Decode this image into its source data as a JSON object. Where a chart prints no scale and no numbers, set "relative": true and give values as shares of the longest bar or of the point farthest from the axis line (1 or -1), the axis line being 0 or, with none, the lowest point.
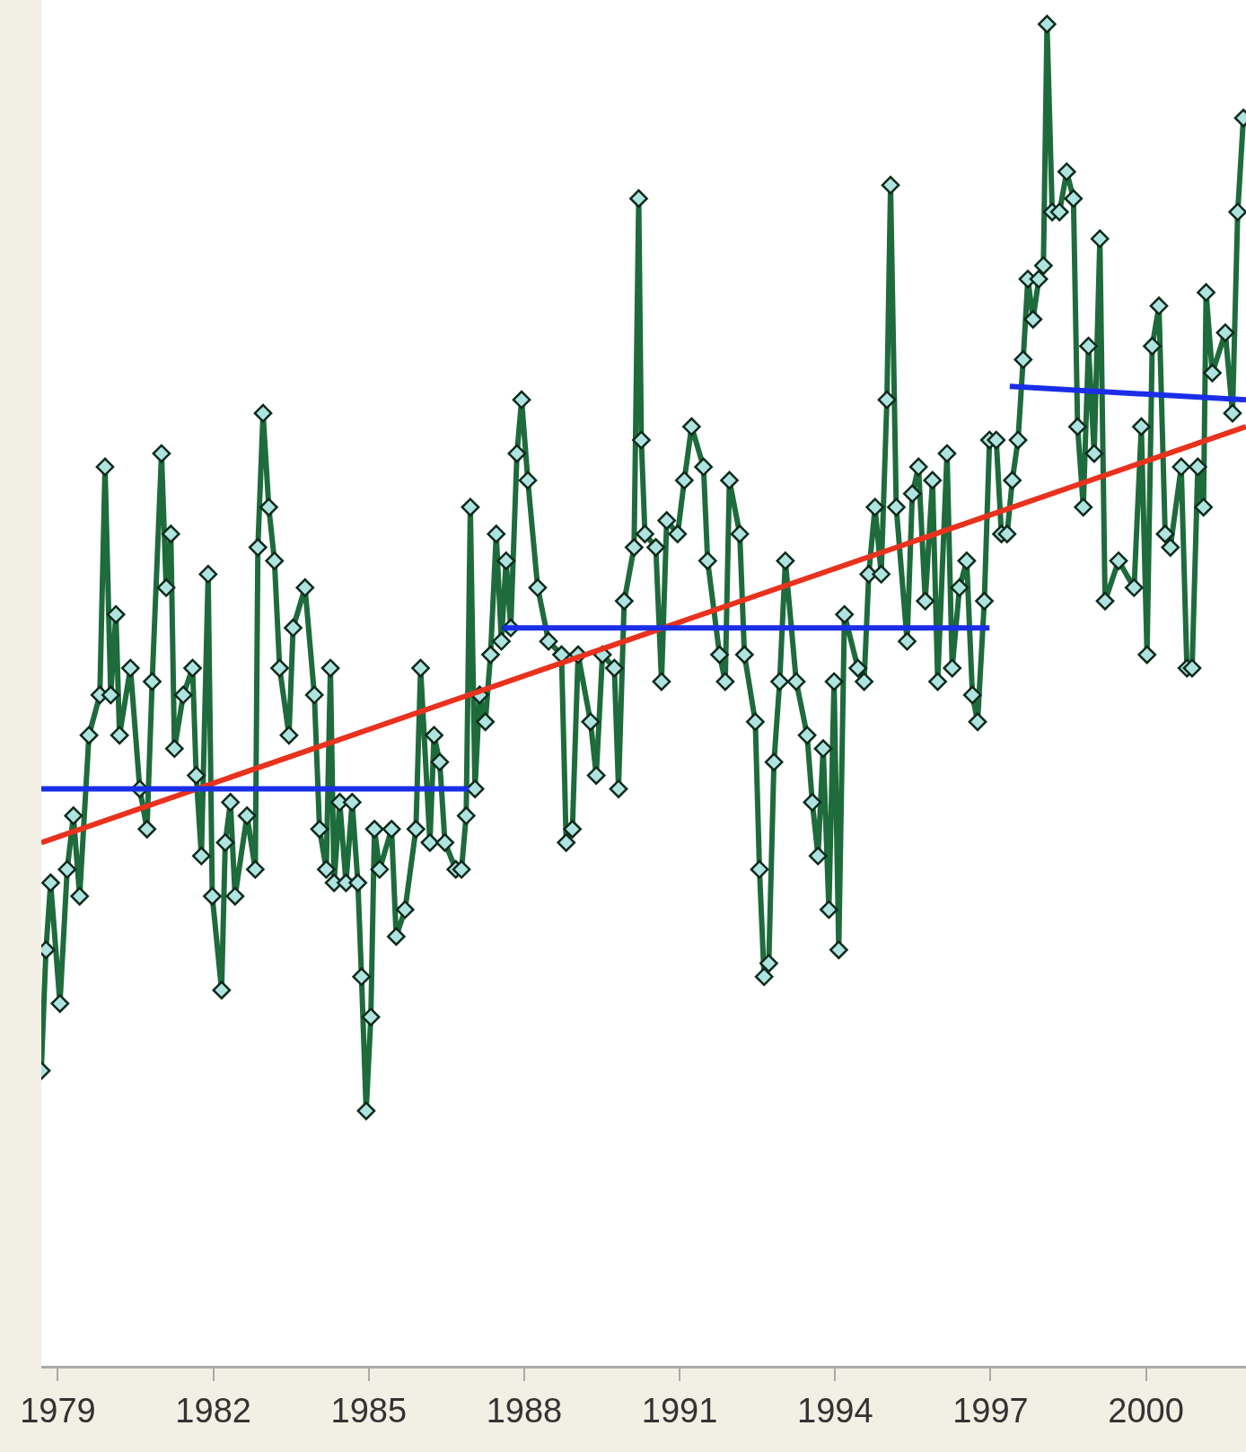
{
  "chart_data": {
    "type": "line",
    "relative": true,
    "tick_labels": "x",
    "xlim": [
      1978.68,
      2001.93
    ],
    "xticks": [
      1979,
      1982,
      1985,
      1988,
      1991,
      1994,
      1997,
      2000
    ],
    "series": [
      {
        "color": "#1e6b3c",
        "marker": "diamond",
        "line_style": "solid",
        "x": [
          1978.68,
          1978.77,
          1978.86,
          1979.04,
          1979.18,
          1979.3,
          1979.42,
          1979.6,
          1979.81,
          1979.91,
          1980.02,
          1980.12,
          1980.19,
          1980.4,
          1980.58,
          1980.72,
          1980.82,
          1981.0,
          1981.09,
          1981.18,
          1981.25,
          1981.42,
          1981.6,
          1981.67,
          1981.77,
          1981.9,
          1981.98,
          1982.16,
          1982.23,
          1982.33,
          1982.42,
          1982.65,
          1982.81,
          1982.86,
          1982.96,
          1983.07,
          1983.18,
          1983.28,
          1983.46,
          1983.54,
          1983.77,
          1983.95,
          1984.05,
          1984.18,
          1984.26,
          1984.33,
          1984.44,
          1984.56,
          1984.68,
          1984.79,
          1984.86,
          1984.95,
          1985.04,
          1985.11,
          1985.21,
          1985.44,
          1985.53,
          1985.7,
          1985.91,
          1986.0,
          1986.18,
          1986.26,
          1986.37,
          1986.47,
          1986.68,
          1986.79,
          1986.88,
          1986.96,
          1987.05,
          1987.14,
          1987.25,
          1987.35,
          1987.46,
          1987.56,
          1987.65,
          1987.74,
          1987.86,
          1987.95,
          1988.07,
          1988.26,
          1988.47,
          1988.72,
          1988.81,
          1988.93,
          1989.04,
          1989.28,
          1989.39,
          1989.51,
          1989.74,
          1989.82,
          1989.93,
          1990.12,
          1990.21,
          1990.26,
          1990.33,
          1990.54,
          1990.65,
          1990.75,
          1990.96,
          1991.09,
          1991.23,
          1991.46,
          1991.54,
          1991.77,
          1991.88,
          1991.96,
          1992.16,
          1992.25,
          1992.46,
          1992.54,
          1992.63,
          1992.72,
          1992.82,
          1992.93,
          1993.04,
          1993.25,
          1993.46,
          1993.56,
          1993.67,
          1993.77,
          1993.88,
          1993.98,
          1994.07,
          1994.18,
          1994.44,
          1994.56,
          1994.65,
          1994.77,
          1994.89,
          1995.0,
          1995.07,
          1995.18,
          1995.39,
          1995.49,
          1995.61,
          1995.74,
          1995.88,
          1995.98,
          1996.16,
          1996.26,
          1996.4,
          1996.54,
          1996.65,
          1996.75,
          1996.88,
          1996.98,
          1997.11,
          1997.21,
          1997.32,
          1997.42,
          1997.53,
          1997.63,
          1997.72,
          1997.82,
          1997.93,
          1998.02,
          1998.09,
          1998.19,
          1998.33,
          1998.47,
          1998.6,
          1998.68,
          1998.79,
          1998.89,
          1999.0,
          1999.11,
          1999.21,
          1999.47,
          1999.77,
          1999.91,
          2000.02,
          2000.12,
          2000.25,
          2000.37,
          2000.47,
          2000.68,
          2000.79,
          2000.89,
          2001.0,
          2001.11,
          2001.16,
          2001.28,
          2001.53,
          2001.67,
          2001.77,
          2001.88
        ],
        "values": [
          0.22,
          0.31,
          0.36,
          0.27,
          0.37,
          0.41,
          0.35,
          0.47,
          0.5,
          0.67,
          0.5,
          0.56,
          0.47,
          0.52,
          0.43,
          0.4,
          0.51,
          0.68,
          0.58,
          0.62,
          0.46,
          0.5,
          0.52,
          0.44,
          0.38,
          0.59,
          0.35,
          0.28,
          0.39,
          0.42,
          0.35,
          0.41,
          0.37,
          0.61,
          0.71,
          0.64,
          0.6,
          0.52,
          0.47,
          0.55,
          0.58,
          0.5,
          0.4,
          0.37,
          0.52,
          0.36,
          0.42,
          0.36,
          0.42,
          0.36,
          0.29,
          0.19,
          0.26,
          0.4,
          0.37,
          0.4,
          0.32,
          0.34,
          0.4,
          0.52,
          0.39,
          0.47,
          0.45,
          0.39,
          0.37,
          0.37,
          0.41,
          0.64,
          0.43,
          0.5,
          0.48,
          0.53,
          0.62,
          0.54,
          0.6,
          0.55,
          0.68,
          0.72,
          0.66,
          0.58,
          0.54,
          0.53,
          0.39,
          0.4,
          0.53,
          0.48,
          0.44,
          0.53,
          0.52,
          0.43,
          0.57,
          0.61,
          0.87,
          0.69,
          0.62,
          0.61,
          0.51,
          0.63,
          0.62,
          0.66,
          0.7,
          0.67,
          0.6,
          0.53,
          0.51,
          0.66,
          0.62,
          0.53,
          0.48,
          0.37,
          0.29,
          0.3,
          0.45,
          0.51,
          0.6,
          0.51,
          0.47,
          0.42,
          0.38,
          0.46,
          0.34,
          0.51,
          0.31,
          0.56,
          0.52,
          0.51,
          0.59,
          0.64,
          0.59,
          0.72,
          0.88,
          0.64,
          0.54,
          0.65,
          0.67,
          0.57,
          0.66,
          0.51,
          0.68,
          0.52,
          0.58,
          0.6,
          0.5,
          0.48,
          0.57,
          0.69,
          0.69,
          0.62,
          0.62,
          0.66,
          0.69,
          0.75,
          0.81,
          0.78,
          0.81,
          0.82,
          1,
          0.86,
          0.86,
          0.89,
          0.87,
          0.7,
          0.64,
          0.76,
          0.68,
          0.84,
          0.57,
          0.6,
          0.58,
          0.7,
          0.53,
          0.76,
          0.79,
          0.62,
          0.61,
          0.67,
          0.52,
          0.52,
          0.67,
          0.64,
          0.8,
          0.74,
          0.77,
          0.71,
          0.86,
          0.93
        ]
      },
      {
        "color": "#e8321e",
        "marker": "none",
        "line_style": "solid",
        "x": [
          1978.68,
          2001.93
        ],
        "values": [
          0.39,
          0.7
        ]
      },
      {
        "color": "#1a2ee8",
        "marker": "none",
        "line_style": "solid",
        "x": [
          1978.68,
          1986.93
        ],
        "values": [
          0.43,
          0.43
        ]
      },
      {
        "color": "#1a2ee8",
        "marker": "none",
        "line_style": "solid",
        "x": [
          1987.58,
          1996.98
        ],
        "values": [
          0.55,
          0.55
        ]
      },
      {
        "color": "#1a2ee8",
        "marker": "none",
        "line_style": "solid",
        "x": [
          1997.37,
          2001.93
        ],
        "values": [
          0.73,
          0.72
        ]
      }
    ]
  }
}
